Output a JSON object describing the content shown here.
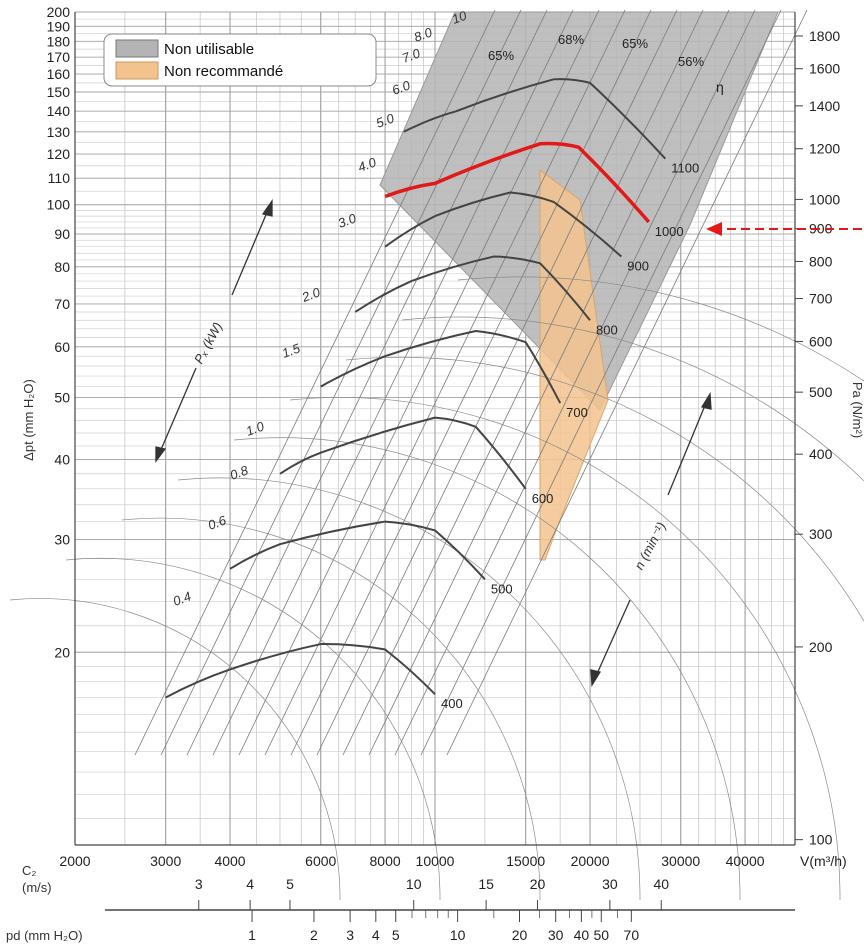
{
  "chart_data": {
    "type": "line",
    "x_axis": {
      "label": "V(m³/h)",
      "scale": "log",
      "range": [
        2000,
        50000
      ],
      "ticks": [
        2000,
        3000,
        4000,
        6000,
        8000,
        10000,
        15000,
        20000,
        30000,
        40000
      ],
      "tick_labels": [
        "2000",
        "3000",
        "4000",
        "6000",
        "8000",
        "10000",
        "15000",
        "20000",
        "30000",
        "40000"
      ]
    },
    "y_left": {
      "label": "Δpt (mm H₂O)",
      "scale": "log",
      "range": [
        10,
        200
      ],
      "ticks": [
        20,
        30,
        40,
        50,
        60,
        70,
        80,
        90,
        100,
        110,
        120,
        130,
        140,
        150,
        160,
        170,
        180,
        190,
        200
      ],
      "tick_labels": [
        "20",
        "30",
        "40",
        "50",
        "60",
        "70",
        "80",
        "90",
        "100",
        "110",
        "120",
        "130",
        "140",
        "150",
        "160",
        "170",
        "180",
        "190",
        "200"
      ]
    },
    "y_right": {
      "label": "Pa (N/m²)",
      "ticks": [
        100,
        200,
        300,
        400,
        500,
        600,
        700,
        800,
        900,
        1000,
        1200,
        1400,
        1600,
        1800
      ],
      "tick_labels": [
        "100",
        "200",
        "300",
        "400",
        "500",
        "600",
        "700",
        "800",
        "900",
        "1000",
        "1200",
        "1400",
        "1600",
        "1800"
      ]
    },
    "c2_axis": {
      "label": "C₂\n(m/s)",
      "ticks": [
        3,
        4,
        5,
        10,
        15,
        20,
        30,
        40
      ],
      "tick_labels": [
        "3",
        "4",
        "5",
        "10",
        "15",
        "20",
        "30",
        "40"
      ]
    },
    "pd_axis": {
      "label": "pd (mm H₂O)",
      "ticks": [
        1,
        2,
        3,
        4,
        5,
        10,
        20,
        30,
        40,
        50,
        70
      ],
      "tick_labels": [
        "1",
        "2",
        "3",
        "4",
        "5",
        "10",
        "20",
        "30",
        "40",
        "50",
        "70"
      ]
    },
    "legend": {
      "placement": "top-left",
      "items": [
        {
          "label": "Non utilisable",
          "color": "#b4b4b4"
        },
        {
          "label": "Non recommandé",
          "color": "#f3c38e"
        }
      ]
    },
    "speed_axis_label": "n (min⁻¹)",
    "power_axis_label": "Pₓ (kW)",
    "efficiency_symbol": "η",
    "highlight_color": "#e11919",
    "speed_curves": [
      {
        "name": "400",
        "x": [
          3000,
          4000,
          6000,
          8000,
          10000
        ],
        "y": [
          17,
          18.8,
          20.6,
          20.2,
          17.2
        ]
      },
      {
        "name": "500",
        "x": [
          4000,
          5000,
          8000,
          10000,
          12500
        ],
        "y": [
          27,
          29.5,
          32,
          31,
          26
        ]
      },
      {
        "name": "600",
        "x": [
          5000,
          6000,
          10000,
          12000,
          15000
        ],
        "y": [
          38,
          41,
          46.5,
          45,
          36
        ]
      },
      {
        "name": "700",
        "x": [
          6000,
          8000,
          12000,
          15000,
          17500
        ],
        "y": [
          52,
          58,
          63.5,
          61,
          49
        ]
      },
      {
        "name": "800",
        "x": [
          7000,
          9000,
          13000,
          16000,
          20000
        ],
        "y": [
          68,
          76,
          83,
          81,
          66
        ]
      },
      {
        "name": "900",
        "x": [
          8000,
          10000,
          14000,
          17000,
          23000
        ],
        "y": [
          86,
          96,
          104.5,
          101,
          83
        ]
      },
      {
        "name": "1000",
        "x": [
          8000,
          10000,
          16000,
          19000,
          26000
        ],
        "y": [
          103,
          108,
          124.5,
          123,
          94
        ]
      },
      {
        "name": "1100",
        "x": [
          8700,
          11000,
          17000,
          20000,
          28000
        ],
        "y": [
          130,
          140,
          157,
          155,
          118
        ]
      }
    ],
    "power_lines": [
      "0.4",
      "0.6",
      "0.8",
      "1.0",
      "1.5",
      "2.0",
      "3.0",
      "4.0",
      "5.0",
      "6.0",
      "7.0",
      "8.0",
      "10"
    ],
    "efficiency_lines": [
      "65%",
      "68%",
      "65%",
      "56%"
    ],
    "highlight": {
      "speed": "1000",
      "right_axis_pressure_Pa": 900
    }
  }
}
